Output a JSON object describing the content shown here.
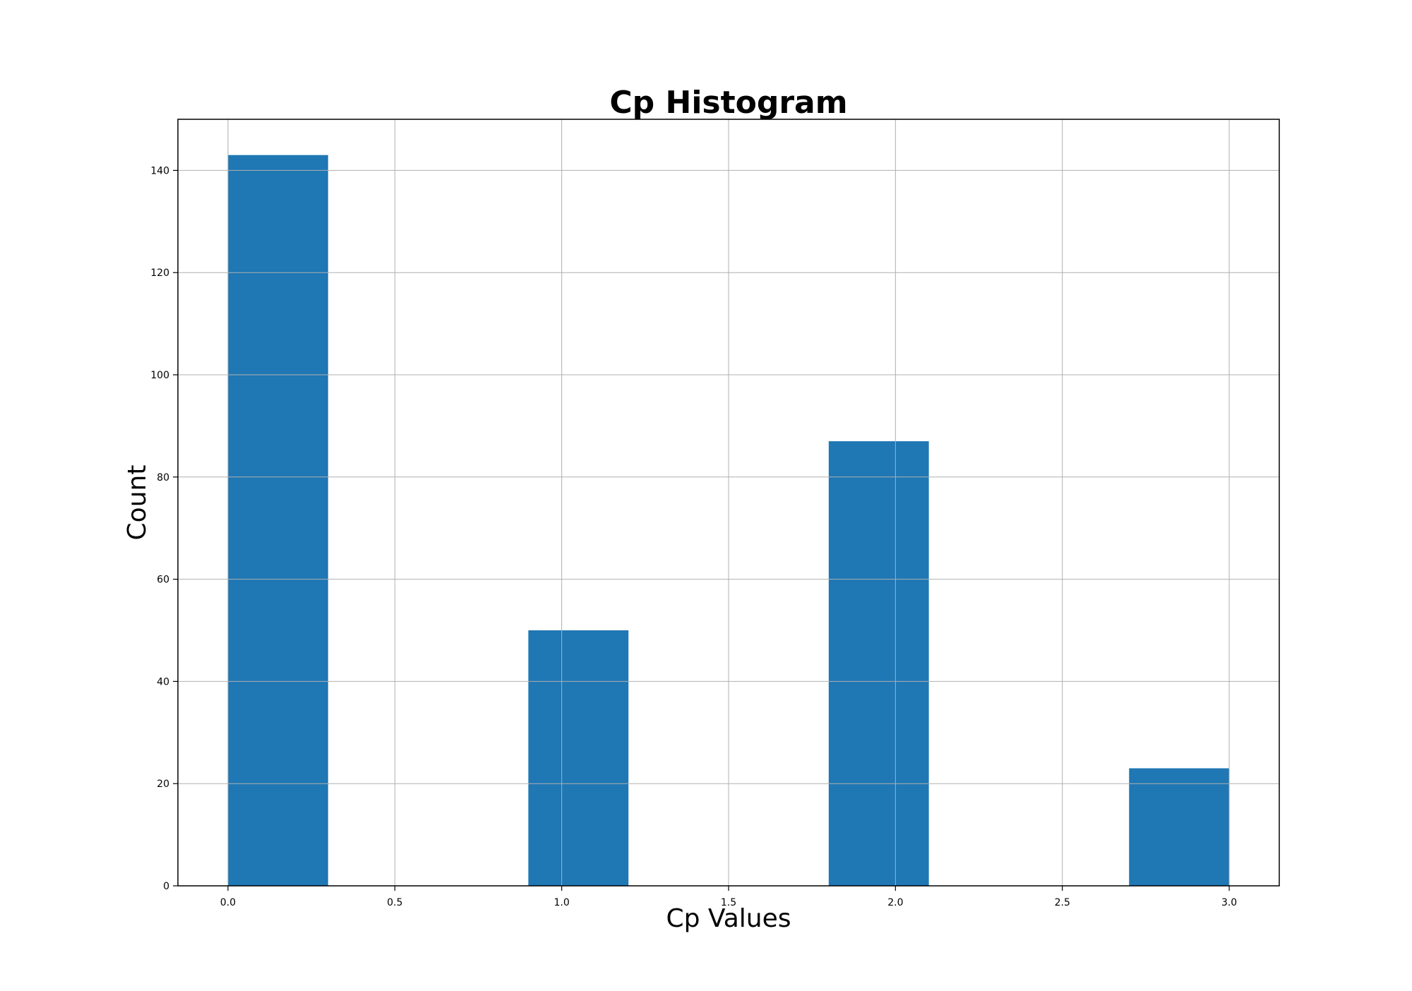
{
  "chart_data": {
    "type": "bar",
    "title": "Cp Histogram",
    "xlabel": "Cp Values",
    "ylabel": "Count",
    "xlim": [
      -0.15,
      3.15
    ],
    "ylim": [
      0,
      150
    ],
    "bins": [
      {
        "x_start": 0.0,
        "x_end": 0.3,
        "count": 143
      },
      {
        "x_start": 0.9,
        "x_end": 1.2,
        "count": 50
      },
      {
        "x_start": 1.8,
        "x_end": 2.1,
        "count": 87
      },
      {
        "x_start": 2.7,
        "x_end": 3.0,
        "count": 23
      }
    ],
    "x_ticks": [
      {
        "value": 0.0,
        "label": "0.0"
      },
      {
        "value": 0.5,
        "label": "0.5"
      },
      {
        "value": 1.0,
        "label": "1.0"
      },
      {
        "value": 1.5,
        "label": "1.5"
      },
      {
        "value": 2.0,
        "label": "2.0"
      },
      {
        "value": 2.5,
        "label": "2.5"
      },
      {
        "value": 3.0,
        "label": "3.0"
      }
    ],
    "y_ticks": [
      {
        "value": 0,
        "label": "0"
      },
      {
        "value": 20,
        "label": "20"
      },
      {
        "value": 40,
        "label": "40"
      },
      {
        "value": 60,
        "label": "60"
      },
      {
        "value": 80,
        "label": "80"
      },
      {
        "value": 100,
        "label": "100"
      },
      {
        "value": 120,
        "label": "120"
      },
      {
        "value": 140,
        "label": "140"
      }
    ],
    "grid": true,
    "bar_color": "#1f77b4",
    "grid_color": "#b0b0b0"
  }
}
